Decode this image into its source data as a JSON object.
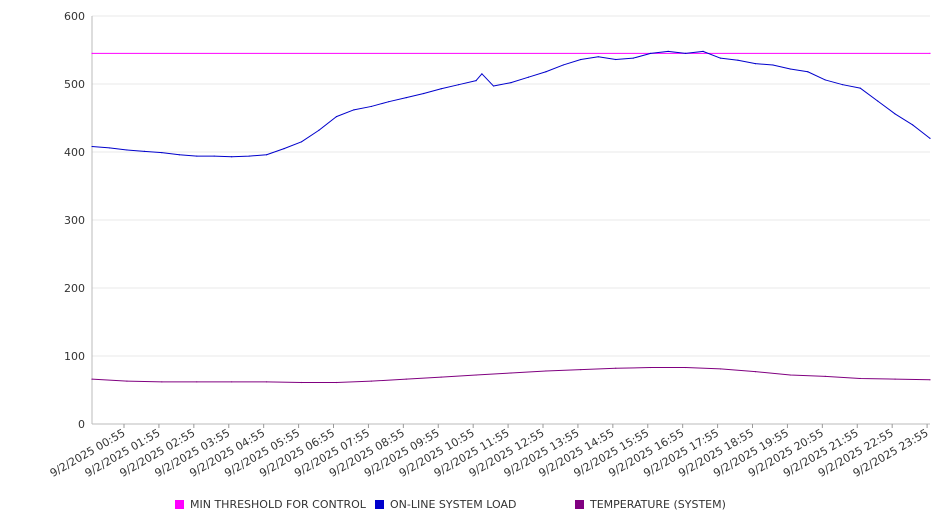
{
  "chart_data": {
    "type": "line",
    "title": "",
    "xlabel": "",
    "ylabel": "",
    "ylim": [
      0,
      600
    ],
    "yticks": [
      "0",
      "100",
      "200",
      "300",
      "400",
      "500",
      "600"
    ],
    "x_tick_labels": [
      "9/2/2025 00:55",
      "9/2/2025 01:55",
      "9/2/2025 02:55",
      "9/2/2025 03:55",
      "9/2/2025 04:55",
      "9/2/2025 05:55",
      "9/2/2025 06:55",
      "9/2/2025 07:55",
      "9/2/2025 08:55",
      "9/2/2025 09:55",
      "9/2/2025 10:55",
      "9/2/2025 11:55",
      "9/2/2025 12:55",
      "9/2/2025 13:55",
      "9/2/2025 14:55",
      "9/2/2025 15:55",
      "9/2/2025 16:55",
      "9/2/2025 17:55",
      "9/2/2025 18:55",
      "9/2/2025 19:55",
      "9/2/2025 20:55",
      "9/2/2025 21:55",
      "9/2/2025 22:55",
      "9/2/2025 23:55"
    ],
    "grid": true,
    "legend_position": "bottom",
    "series": [
      {
        "name": "MIN THRESHOLD FOR CONTROL",
        "color": "#ff00ff",
        "x": [
          "9/2/2025 00:00",
          "9/2/2025 24:00"
        ],
        "values": [
          545,
          545
        ]
      },
      {
        "name": "ON-LINE SYSTEM LOAD",
        "color": "#0000cc",
        "x": [
          "9/2/2025 00:00",
          "9/2/2025 00:30",
          "9/2/2025 01:00",
          "9/2/2025 01:30",
          "9/2/2025 02:00",
          "9/2/2025 02:30",
          "9/2/2025 03:00",
          "9/2/2025 03:30",
          "9/2/2025 04:00",
          "9/2/2025 04:30",
          "9/2/2025 05:00",
          "9/2/2025 05:30",
          "9/2/2025 06:00",
          "9/2/2025 06:30",
          "9/2/2025 07:00",
          "9/2/2025 07:30",
          "9/2/2025 08:00",
          "9/2/2025 08:30",
          "9/2/2025 09:00",
          "9/2/2025 09:30",
          "9/2/2025 10:00",
          "9/2/2025 10:30",
          "9/2/2025 11:00",
          "9/2/2025 11:10",
          "9/2/2025 11:30",
          "9/2/2025 12:00",
          "9/2/2025 12:30",
          "9/2/2025 13:00",
          "9/2/2025 13:30",
          "9/2/2025 14:00",
          "9/2/2025 14:30",
          "9/2/2025 15:00",
          "9/2/2025 15:30",
          "9/2/2025 16:00",
          "9/2/2025 16:30",
          "9/2/2025 17:00",
          "9/2/2025 17:30",
          "9/2/2025 18:00",
          "9/2/2025 18:30",
          "9/2/2025 19:00",
          "9/2/2025 19:30",
          "9/2/2025 20:00",
          "9/2/2025 20:30",
          "9/2/2025 21:00",
          "9/2/2025 21:30",
          "9/2/2025 22:00",
          "9/2/2025 22:30",
          "9/2/2025 23:00",
          "9/2/2025 23:30",
          "9/2/2025 24:00"
        ],
        "values": [
          408,
          406,
          403,
          401,
          399,
          396,
          394,
          394,
          393,
          394,
          396,
          405,
          415,
          432,
          452,
          462,
          467,
          474,
          480,
          486,
          493,
          499,
          505,
          515,
          497,
          502,
          510,
          518,
          528,
          536,
          540,
          536,
          538,
          545,
          548,
          545,
          548,
          538,
          535,
          530,
          528,
          522,
          518,
          506,
          499,
          494,
          475,
          456,
          440,
          420
        ]
      },
      {
        "name": "TEMPERATURE (SYSTEM)",
        "color": "#800080",
        "x": [
          "9/2/2025 00:00",
          "9/2/2025 01:00",
          "9/2/2025 02:00",
          "9/2/2025 03:00",
          "9/2/2025 04:00",
          "9/2/2025 05:00",
          "9/2/2025 06:00",
          "9/2/2025 07:00",
          "9/2/2025 08:00",
          "9/2/2025 09:00",
          "9/2/2025 10:00",
          "9/2/2025 11:00",
          "9/2/2025 12:00",
          "9/2/2025 13:00",
          "9/2/2025 14:00",
          "9/2/2025 15:00",
          "9/2/2025 16:00",
          "9/2/2025 17:00",
          "9/2/2025 18:00",
          "9/2/2025 19:00",
          "9/2/2025 20:00",
          "9/2/2025 21:00",
          "9/2/2025 22:00",
          "9/2/2025 23:00",
          "9/2/2025 24:00"
        ],
        "values": [
          66,
          63,
          62,
          62,
          62,
          62,
          61,
          61,
          63,
          66,
          69,
          72,
          75,
          78,
          80,
          82,
          83,
          83,
          81,
          77,
          72,
          70,
          67,
          66,
          65
        ]
      }
    ]
  }
}
